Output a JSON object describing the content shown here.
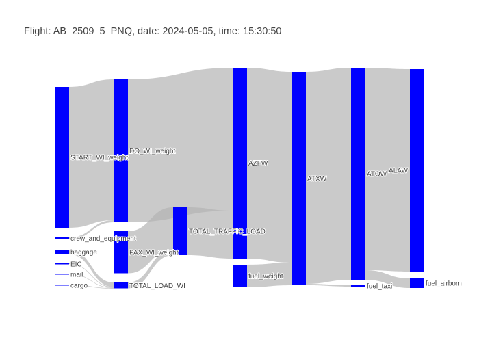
{
  "chart_data": {
    "type": "sankey",
    "title": "Flight: AB_2509_5_PNQ, date: 2024-05-05, time: 15:30:50",
    "node_color": "#0000ff",
    "link_color": "#b4b4b4",
    "nodes": [
      {
        "id": "START_WI_weight",
        "label": "START_WI_weight",
        "column": 0,
        "value": 41200
      },
      {
        "id": "crew_and_equipment",
        "label": "crew_and_equipment",
        "column": 0,
        "value": 600
      },
      {
        "id": "baggage",
        "label": "baggage",
        "column": 0,
        "value": 1300
      },
      {
        "id": "EIC",
        "label": "EIC",
        "column": 0,
        "value": 200
      },
      {
        "id": "mail",
        "label": "mail",
        "column": 0,
        "value": 100
      },
      {
        "id": "cargo",
        "label": "cargo",
        "column": 0,
        "value": 100
      },
      {
        "id": "DO_WI_weight",
        "label": "DO_WI_weight",
        "column": 1,
        "value": 41800
      },
      {
        "id": "PAX_WI_weight",
        "label": "PAX_WI_weight",
        "column": 1,
        "value": 12300
      },
      {
        "id": "TOTAL_LOAD_WI",
        "label": "TOTAL_LOAD_WI",
        "column": 1,
        "value": 1700
      },
      {
        "id": "TOTAL_TRAFFIC_LOAD",
        "label": "TOTAL_TRAFFIC_LOAD",
        "column": 2,
        "value": 14000
      },
      {
        "id": "AZFW",
        "label": "AZFW",
        "column": 3,
        "value": 55800
      },
      {
        "id": "fuel_weight",
        "label": "fuel_weight",
        "column": 3,
        "value": 6600
      },
      {
        "id": "ATXW",
        "label": "ATXW",
        "column": 4,
        "value": 62400
      },
      {
        "id": "ATOW",
        "label": "ATOW",
        "column": 5,
        "value": 62000
      },
      {
        "id": "fuel_taxi",
        "label": "fuel_taxi",
        "column": 5,
        "value": 400
      },
      {
        "id": "ALAW",
        "label": "ALAW",
        "column": 6,
        "value": 59200
      },
      {
        "id": "fuel_airborn",
        "label": "fuel_airborn",
        "column": 6,
        "value": 2800
      }
    ],
    "links": [
      {
        "source": "START_WI_weight",
        "target": "DO_WI_weight",
        "value": 41200
      },
      {
        "source": "crew_and_equipment",
        "target": "DO_WI_weight",
        "value": 600
      },
      {
        "source": "baggage",
        "target": "TOTAL_LOAD_WI",
        "value": 1300
      },
      {
        "source": "EIC",
        "target": "TOTAL_LOAD_WI",
        "value": 200
      },
      {
        "source": "mail",
        "target": "TOTAL_LOAD_WI",
        "value": 100
      },
      {
        "source": "cargo",
        "target": "TOTAL_LOAD_WI",
        "value": 100
      },
      {
        "source": "PAX_WI_weight",
        "target": "TOTAL_TRAFFIC_LOAD",
        "value": 12300
      },
      {
        "source": "TOTAL_LOAD_WI",
        "target": "TOTAL_TRAFFIC_LOAD",
        "value": 1700
      },
      {
        "source": "DO_WI_weight",
        "target": "AZFW",
        "value": 41800
      },
      {
        "source": "TOTAL_TRAFFIC_LOAD",
        "target": "AZFW",
        "value": 14000
      },
      {
        "source": "AZFW",
        "target": "ATXW",
        "value": 55800
      },
      {
        "source": "fuel_weight",
        "target": "ATXW",
        "value": 6600
      },
      {
        "source": "ATXW",
        "target": "ATOW",
        "value": 62000
      },
      {
        "source": "ATXW",
        "target": "fuel_taxi",
        "value": 400
      },
      {
        "source": "ATOW",
        "target": "ALAW",
        "value": 59200
      },
      {
        "source": "ATOW",
        "target": "fuel_airborn",
        "value": 2800
      }
    ]
  }
}
